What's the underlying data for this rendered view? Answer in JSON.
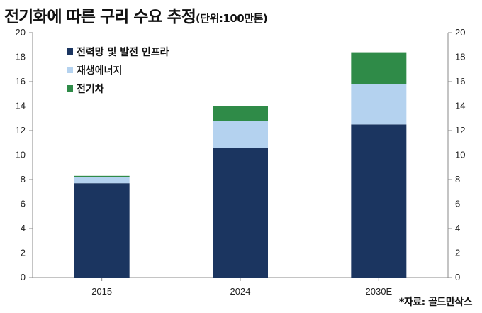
{
  "title": "전기화에 따른 구리 수요 추정",
  "unit": "(단위:100만톤)",
  "source": "*자료: 골드만삭스",
  "colors": {
    "grid_axis": "#888888",
    "text": "#222222"
  },
  "chart_data": {
    "type": "bar",
    "stacked": true,
    "categories": [
      "2015",
      "2024",
      "2030E"
    ],
    "series": [
      {
        "name": "전력망 및 발전 인프라",
        "color": "#1b3560",
        "values": [
          7.7,
          10.6,
          12.5
        ]
      },
      {
        "name": "재생에너지",
        "color": "#b4d2ef",
        "values": [
          0.5,
          2.2,
          3.3
        ]
      },
      {
        "name": "전기차",
        "color": "#2f8b48",
        "values": [
          0.1,
          1.2,
          2.6
        ]
      }
    ],
    "ylim": [
      0,
      20
    ],
    "yticks": [
      0,
      2,
      4,
      6,
      8,
      10,
      12,
      14,
      16,
      18,
      20
    ],
    "secondary_y_axis": true,
    "grid": false,
    "legend_position": "top-left"
  }
}
